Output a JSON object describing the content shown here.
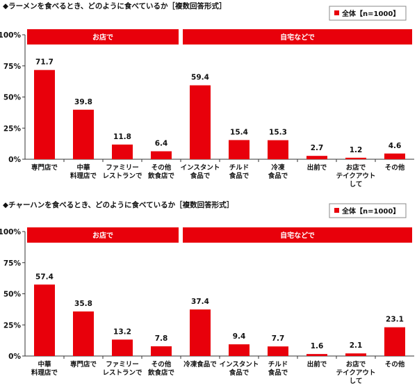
{
  "colors": {
    "bar": "#e8000b",
    "band": "#e8000b",
    "band_text": "#ffffff",
    "axis": "#333333",
    "text": "#111111"
  },
  "chart_data": [
    {
      "type": "bar",
      "title": "◆ラーメンを食べるとき、どのように食べているか［複数回答形式］",
      "legend": "全体【n=1000】",
      "legend_position": "top-right",
      "y_ticks": [
        "0%",
        "25%",
        "50%",
        "75%",
        "100%"
      ],
      "ylim": [
        0,
        100
      ],
      "groups": [
        {
          "label": "お店で",
          "count": 4
        },
        {
          "label": "自宅などで",
          "count": 6
        }
      ],
      "categories": [
        [
          "専門店で"
        ],
        [
          "中華",
          "料理店で"
        ],
        [
          "ファミリー",
          "レストランで"
        ],
        [
          "その他",
          "飲食店で"
        ],
        [
          "インスタント",
          "食品で"
        ],
        [
          "チルド",
          "食品で"
        ],
        [
          "冷凍",
          "食品で"
        ],
        [
          "出前で"
        ],
        [
          "お店で",
          "テイクアウト",
          "して"
        ],
        [
          "その他"
        ]
      ],
      "values": [
        71.7,
        39.8,
        11.8,
        6.4,
        59.4,
        15.4,
        15.3,
        2.7,
        1.2,
        4.6
      ],
      "value_labels": [
        "71.7",
        "39.8",
        "11.8",
        "6.4",
        "59.4",
        "15.4",
        "15.3",
        "2.7",
        "1.2",
        "4.6"
      ]
    },
    {
      "type": "bar",
      "title": "◆チャーハンを食べるとき、どのように食べているか［複数回答形式］",
      "legend": "全体【n=1000】",
      "legend_position": "top-right",
      "y_ticks": [
        "0%",
        "25%",
        "50%",
        "75%",
        "100%"
      ],
      "ylim": [
        0,
        100
      ],
      "groups": [
        {
          "label": "お店で",
          "count": 4
        },
        {
          "label": "自宅などで",
          "count": 6
        }
      ],
      "categories": [
        [
          "中華",
          "料理店で"
        ],
        [
          "専門店で"
        ],
        [
          "ファミリー",
          "レストランで"
        ],
        [
          "その他",
          "飲食店で"
        ],
        [
          "冷凍食品で"
        ],
        [
          "インスタント",
          "食品で"
        ],
        [
          "チルド",
          "食品で"
        ],
        [
          "出前で"
        ],
        [
          "お店で",
          "テイクアウト",
          "して"
        ],
        [
          "その他"
        ]
      ],
      "values": [
        57.4,
        35.8,
        13.2,
        7.8,
        37.4,
        9.4,
        7.7,
        1.6,
        2.1,
        23.1
      ],
      "value_labels": [
        "57.4",
        "35.8",
        "13.2",
        "7.8",
        "37.4",
        "9.4",
        "7.7",
        "1.6",
        "2.1",
        "23.1"
      ]
    }
  ]
}
